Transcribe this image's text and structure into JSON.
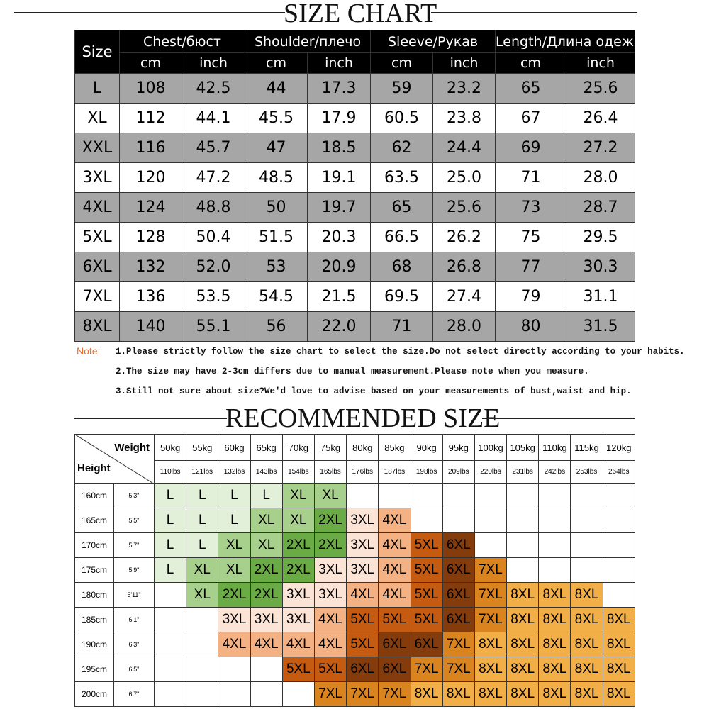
{
  "size_chart": {
    "title": "SIZE CHART",
    "size_header": "Size",
    "groups": [
      "Chest/бюст",
      "Shoulder/плечо",
      "Sleeve/Рукав",
      "Length/Длина одежды"
    ],
    "units": [
      "cm",
      "inch",
      "cm",
      "inch",
      "cm",
      "inch",
      "cm",
      "inch"
    ],
    "rows": [
      [
        "L",
        "108",
        "42.5",
        "44",
        "17.3",
        "59",
        "23.2",
        "65",
        "25.6"
      ],
      [
        "XL",
        "112",
        "44.1",
        "45.5",
        "17.9",
        "60.5",
        "23.8",
        "67",
        "26.4"
      ],
      [
        "XXL",
        "116",
        "45.7",
        "47",
        "18.5",
        "62",
        "24.4",
        "69",
        "27.2"
      ],
      [
        "3XL",
        "120",
        "47.2",
        "48.5",
        "19.1",
        "63.5",
        "25.0",
        "71",
        "28.0"
      ],
      [
        "4XL",
        "124",
        "48.8",
        "50",
        "19.7",
        "65",
        "25.6",
        "73",
        "28.7"
      ],
      [
        "5XL",
        "128",
        "50.4",
        "51.5",
        "20.3",
        "66.5",
        "26.2",
        "75",
        "29.5"
      ],
      [
        "6XL",
        "132",
        "52.0",
        "53",
        "20.9",
        "68",
        "26.8",
        "77",
        "30.3"
      ],
      [
        "7XL",
        "136",
        "53.5",
        "54.5",
        "21.5",
        "69.5",
        "27.4",
        "79",
        "31.1"
      ],
      [
        "8XL",
        "140",
        "55.1",
        "56",
        "22.0",
        "71",
        "28.0",
        "80",
        "31.5"
      ]
    ]
  },
  "notes": {
    "label": "Note:",
    "items": [
      "1.Please strictly follow the size chart to select the size.Do not select directly according to your habits.",
      "2.The size may have 2-3cm differs due to manual measurement.Please note when you measure.",
      "3.Still not sure about size?We'd love to advise based on your measurements of bust,waist and hip."
    ]
  },
  "recommended": {
    "title": "RECOMMENDED SIZE",
    "weight_label": "Weight",
    "height_label": "Height",
    "weights_kg": [
      "50kg",
      "55kg",
      "60kg",
      "65kg",
      "70kg",
      "75kg",
      "80kg",
      "85kg",
      "90kg",
      "95kg",
      "100kg",
      "105kg",
      "110kg",
      "115kg",
      "120kg"
    ],
    "weights_lbs": [
      "110lbs",
      "121lbs",
      "132lbs",
      "143lbs",
      "154lbs",
      "165lbs",
      "176lbs",
      "187lbs",
      "198lbs",
      "209lbs",
      "220lbs",
      "231lbs",
      "242lbs",
      "253lbs",
      "264lbs"
    ],
    "rows": [
      {
        "height": "160cm",
        "feet": "5'3\"",
        "cells": [
          "L",
          "L",
          "L",
          "L",
          "XL",
          "XL",
          null,
          null,
          null,
          null,
          null,
          null,
          null,
          null,
          null
        ]
      },
      {
        "height": "165cm",
        "feet": "5'5\"",
        "cells": [
          "L",
          "L",
          "L",
          "XL",
          "XL",
          "2XL",
          "3XL",
          "4XL",
          null,
          null,
          null,
          null,
          null,
          null,
          null
        ]
      },
      {
        "height": "170cm",
        "feet": "5'7\"",
        "cells": [
          "L",
          "L",
          "XL",
          "XL",
          "2XL",
          "2XL",
          "3XL",
          "4XL",
          "5XL",
          "6XL",
          null,
          null,
          null,
          null,
          null
        ]
      },
      {
        "height": "175cm",
        "feet": "5'9\"",
        "cells": [
          "L",
          "XL",
          "XL",
          "2XL",
          "2XL",
          "3XL",
          "3XL",
          "4XL",
          "5XL",
          "6XL",
          "7XL",
          null,
          null,
          null,
          null
        ]
      },
      {
        "height": "180cm",
        "feet": "5'11\"",
        "cells": [
          null,
          "XL",
          "2XL",
          "2XL",
          "3XL",
          "3XL",
          "4XL",
          "4XL",
          "5XL",
          "6XL",
          "7XL",
          "8XL",
          "8XL",
          "8XL",
          null
        ]
      },
      {
        "height": "185cm",
        "feet": "6'1\"",
        "cells": [
          null,
          null,
          "3XL",
          "3XL",
          "3XL",
          "4XL",
          "5XL",
          "5XL",
          "5XL",
          "6XL",
          "7XL",
          "8XL",
          "8XL",
          "8XL",
          "8XL"
        ]
      },
      {
        "height": "190cm",
        "feet": "6'3\"",
        "cells": [
          null,
          null,
          "4XL",
          "4XL",
          "4XL",
          "4XL",
          "5XL",
          "6XL",
          "6XL",
          "7XL",
          "8XL",
          "8XL",
          "8XL",
          "8XL",
          "8XL"
        ]
      },
      {
        "height": "195cm",
        "feet": "6'5\"",
        "cells": [
          null,
          null,
          null,
          null,
          "5XL",
          "5XL",
          "6XL",
          "6XL",
          "7XL",
          "7XL",
          "8XL",
          "8XL",
          "8XL",
          "8XL",
          "8XL"
        ]
      },
      {
        "height": "200cm",
        "feet": "6'7\"",
        "cells": [
          null,
          null,
          null,
          null,
          null,
          "7XL",
          "7XL",
          "7XL",
          "8XL",
          "8XL",
          "8XL",
          "8XL",
          "8XL",
          "8XL",
          "8XL"
        ]
      }
    ],
    "color_key": {
      "L": "#e2efd9",
      "XL": "#a8d08d",
      "2XL": "#6aab45",
      "3XL": "#fbe3d5",
      "4XL": "#f4b183",
      "5XL": "#c55a11",
      "6XL": "#843c0c",
      "7XL": "#d9841f",
      "8XL": "#f2ae47"
    }
  }
}
